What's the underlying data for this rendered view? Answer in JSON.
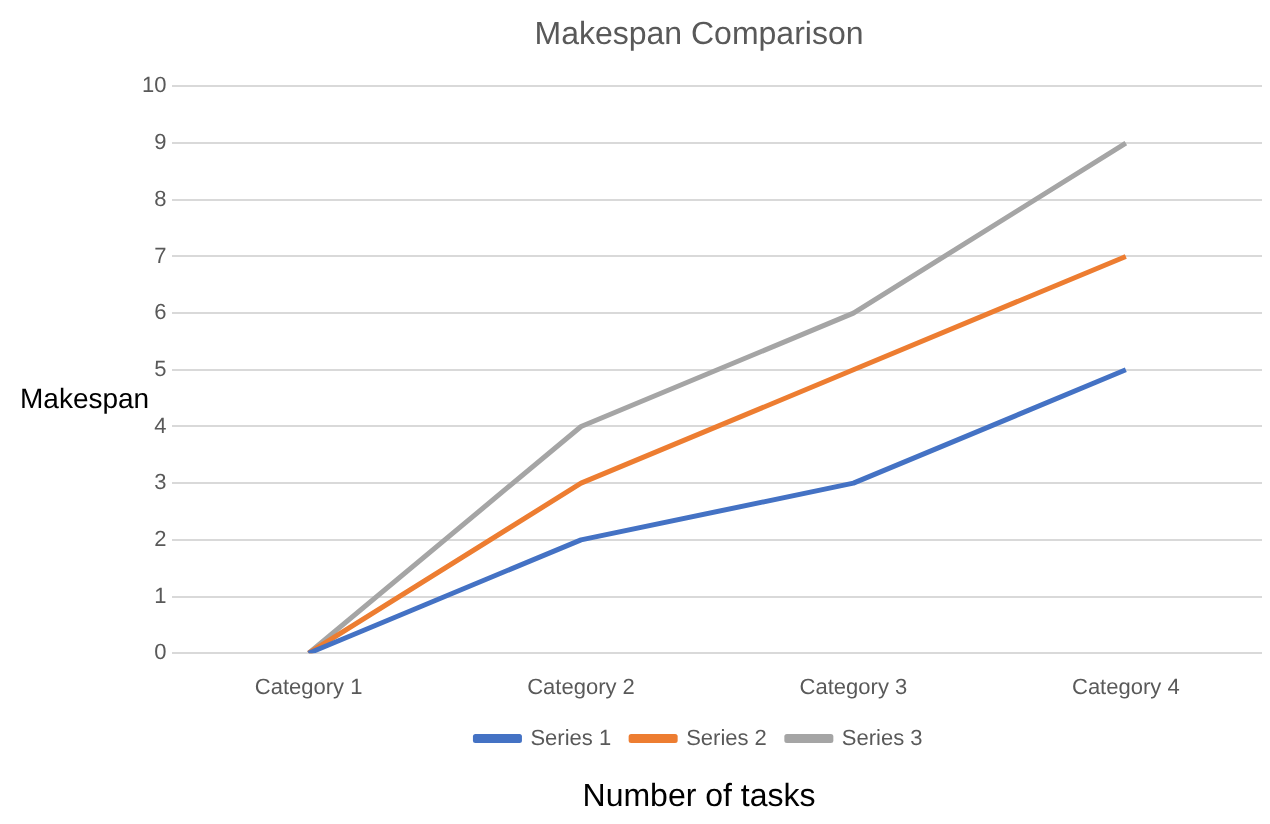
{
  "chart_data": {
    "type": "line",
    "title": "Makespan Comparison",
    "xlabel": "Number of tasks",
    "ylabel": "Makespan",
    "categories": [
      "Category 1",
      "Category 2",
      "Category 3",
      "Category 4"
    ],
    "series": [
      {
        "name": "Series 1",
        "color": "#4472c4",
        "values": [
          0,
          2,
          3,
          5
        ]
      },
      {
        "name": "Series 2",
        "color": "#ed7d31",
        "values": [
          0,
          3,
          5,
          7
        ]
      },
      {
        "name": "Series 3",
        "color": "#a5a5a5",
        "values": [
          0,
          4,
          6,
          9
        ]
      }
    ],
    "ylim": [
      0,
      10
    ],
    "yticks": [
      0,
      1,
      2,
      3,
      4,
      5,
      6,
      7,
      8,
      9,
      10
    ],
    "grid": "y",
    "legend": "bottom",
    "marker": "none",
    "line_style": "solid"
  }
}
